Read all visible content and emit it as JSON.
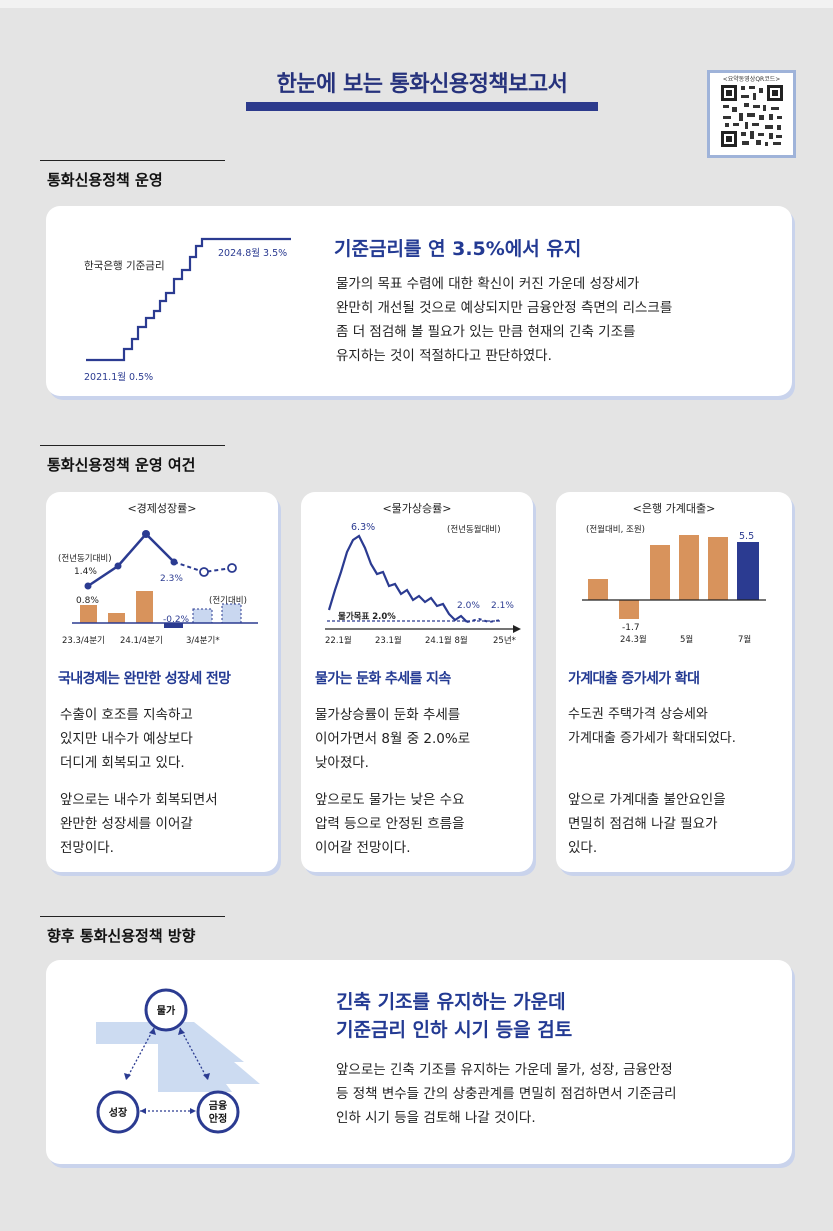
{
  "page": {
    "title": "한눈에 보는 통화신용정책보고서",
    "qr_label": "<요약동영상QR코드>"
  },
  "section1": {
    "heading": "통화신용정책 운영",
    "card": {
      "chart": {
        "series_label": "한국은행 기준금리",
        "start_label": "2021.1월 0.5%",
        "end_label": "2024.8월 3.5%"
      },
      "headline": "기준금리를 연 3.5%에서 유지",
      "lines": [
        "물가의 목표 수렴에 대한 확신이 커진 가운데 성장세가",
        "완만히 개선될 것으로 예상되지만  금융안정 측면의 리스크를",
        "좀 더 점검해 볼 필요가 있는 만큼 현재의 긴축 기조를",
        "유지하는 것이 적절하다고  판단하였다."
      ]
    }
  },
  "section2": {
    "heading": "통화신용정책 운영 여건",
    "growth": {
      "chart_title": "<경제성장률>",
      "yoy_label": "(전년동기대비)",
      "qoq_label": "(전기대비)",
      "yoy_values": [
        "1.4%",
        "2.3%"
      ],
      "bar_values": [
        "0.8%",
        "-0.2%"
      ],
      "x_labels": [
        "23.3/4분기",
        "24.1/4분기",
        "3/4분기*"
      ],
      "headline": "국내경제는 완만한 성장세 전망",
      "para1": [
        "수출이 호조를 지속하고",
        "있지만 내수가 예상보다",
        "더디게 회복되고 있다."
      ],
      "para2": [
        "앞으로는 내수가 회복되면서",
        "완만한 성장세를 이어갈",
        "전망이다."
      ]
    },
    "inflation": {
      "chart_title": "<물가상승률>",
      "yoy_label": "(전년동월대비)",
      "peak_label": "6.3%",
      "target_label": "물가목표 2.0%",
      "val_a": "2.0%",
      "val_b": "2.1%",
      "x_labels": [
        "22.1월",
        "23.1월",
        "24.1월 8월",
        "25년*"
      ],
      "headline": "물가는 둔화 추세를 지속",
      "para1": [
        "물가상승률이  둔화 추세를",
        "이어가면서  8월 중 2.0%로",
        "낮아졌다."
      ],
      "para2": [
        "앞으로도  물가는 낮은 수요",
        "압력 등으로 안정된 흐름을",
        "이어갈 전망이다."
      ]
    },
    "loans": {
      "chart_title": "<은행 가계대출>",
      "unit_label": "(전월대비, 조원)",
      "neg_label": "-1.7",
      "last_label": "5.5",
      "x_labels": [
        "24.3월",
        "5월",
        "7월"
      ],
      "headline": "가계대출 증가세가 확대",
      "para1": [
        "수도권 주택가격 상승세와",
        "가계대출 증가세가 확대되었다."
      ],
      "para2": [
        "앞으로 가계대출 불안요인을",
        "면밀히 점검해 나갈 필요가",
        "있다."
      ]
    }
  },
  "section3": {
    "heading": "향후 통화신용정책 방향",
    "diagram": {
      "top": "물가",
      "left": "성장",
      "right_line1": "금융",
      "right_line2": "안정"
    },
    "headline1": "긴축 기조를 유지하는 가운데",
    "headline2": "기준금리 인하 시기 등을 검토",
    "lines": [
      "앞으로는  긴축 기조를 유지하는 가운데 물가, 성장, 금융안정",
      "등 정책 변수들 간의 상충관계를 면밀히 점검하면서  기준금리",
      "인하 시기 등을 검토해 나갈 것이다."
    ]
  },
  "colors": {
    "navy": "#26327c",
    "bar_orange": "#d8935c",
    "bar_navy": "#2b3b91",
    "card_shadow": "#c9d3ec"
  }
}
